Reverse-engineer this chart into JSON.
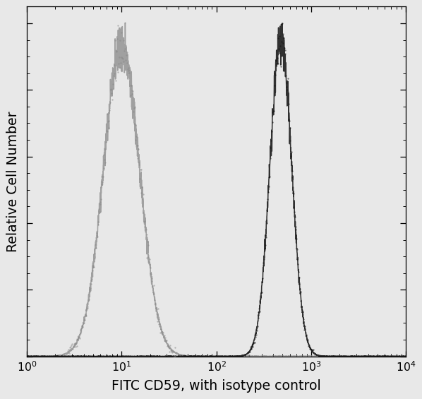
{
  "title": "",
  "xlabel": "FITC CD59, with isotype control",
  "ylabel": "Relative Cell Number",
  "xlim_log": [
    0,
    4
  ],
  "ylim": [
    0,
    1.05
  ],
  "background_color": "#e8e8e8",
  "plot_bg_color": "#e8e8e8",
  "isotype_peak_log": 1.0,
  "isotype_sigma_log": 0.19,
  "isotype_color": "#888888",
  "antibody_peak_log": 2.68,
  "antibody_sigma_log": 0.115,
  "antibody_color": "#111111",
  "line_width": 1.0,
  "xlabel_fontsize": 12,
  "ylabel_fontsize": 12,
  "tick_fontsize": 10,
  "n_points": 3000,
  "noise_amplitude_iso": 0.04,
  "noise_amplitude_ab": 0.035,
  "noise_seed_iso": 101,
  "noise_seed_ab": 202,
  "figwidth": 5.3,
  "figheight": 5.0,
  "dpi": 113
}
